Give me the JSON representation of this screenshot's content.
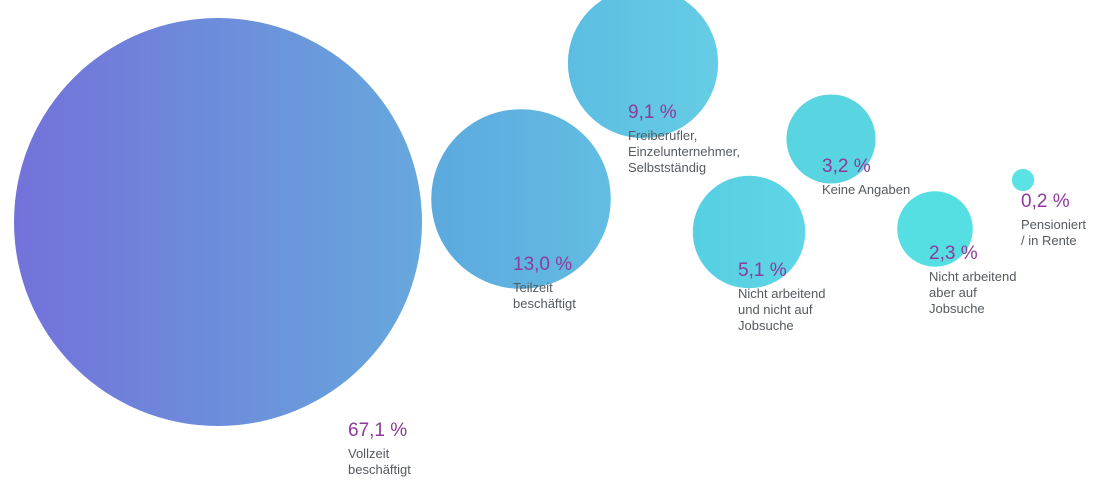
{
  "chart_data": {
    "type": "bubble",
    "unit": "%",
    "points": [
      {
        "value": 67.1,
        "value_label": "67,1 %",
        "label_lines": [
          "Vollzeit",
          "beschäftigt"
        ],
        "color_from": "#7372da",
        "color_to": "#66a8dc"
      },
      {
        "value": 13.0,
        "value_label": "13,0 %",
        "label_lines": [
          "Teilzeit",
          "beschäftigt"
        ],
        "color_from": "#5ca9de",
        "color_to": "#62bde2"
      },
      {
        "value": 9.1,
        "value_label": "9,1 %",
        "label_lines": [
          "Freiberufler,",
          "Einzelunternehmer,",
          "Selbstständig"
        ],
        "color_from": "#5cbde2",
        "color_to": "#66cde5"
      },
      {
        "value": 3.2,
        "value_label": "3,2 %",
        "label_lines": [
          "Keine Angaben"
        ],
        "color_from": "#58d5e0",
        "color_to": "#58d5e0"
      },
      {
        "value": 5.1,
        "value_label": "5,1 %",
        "label_lines": [
          "Nicht arbeitend",
          "und nicht auf",
          "Jobsuche"
        ],
        "color_from": "#56cfe2",
        "color_to": "#5fd6e6"
      },
      {
        "value": 2.3,
        "value_label": "2,3 %",
        "label_lines": [
          "Nicht arbeitend",
          "aber auf",
          "Jobsuche"
        ],
        "color_from": "#56dfe2",
        "color_to": "#56dfe2"
      },
      {
        "value": 0.2,
        "value_label": "0,2 %",
        "label_lines": [
          "Pensioniert",
          "/ in Rente"
        ],
        "color_from": "#5ae2e4",
        "color_to": "#5ae2e4"
      }
    ]
  }
}
